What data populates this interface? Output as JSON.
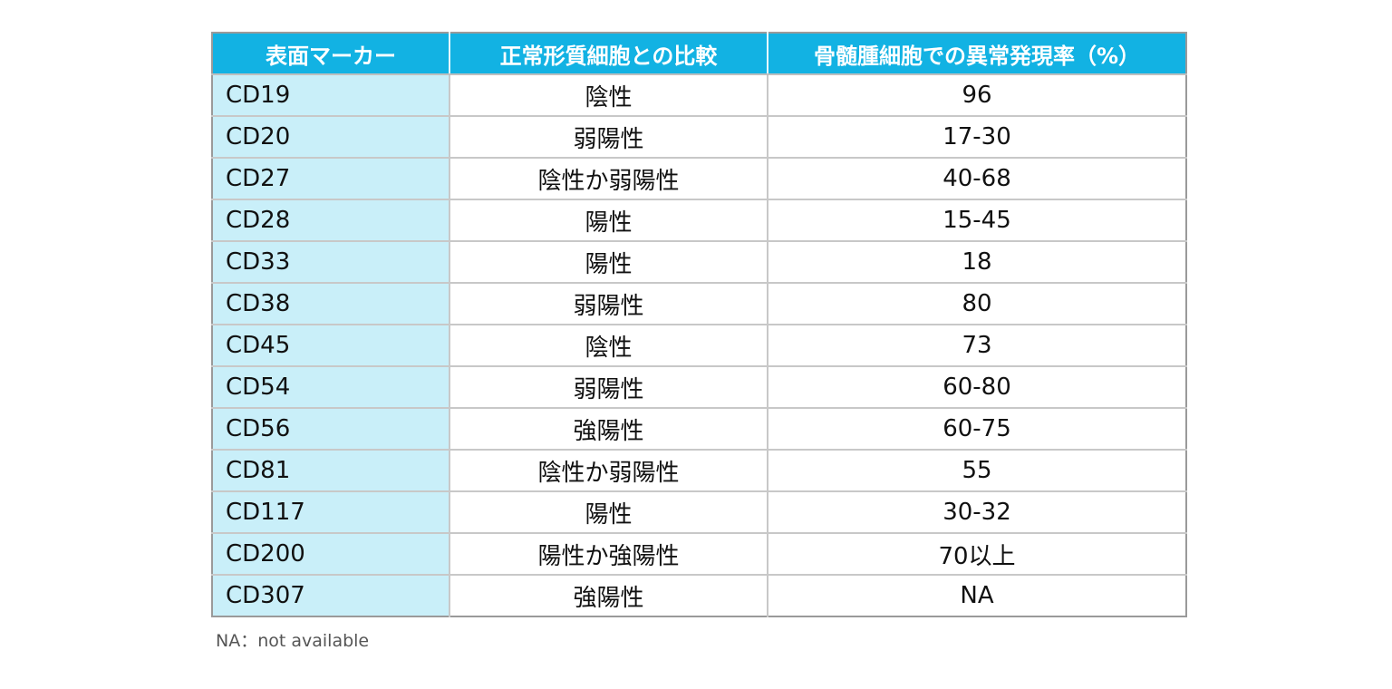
{
  "table": {
    "headers": [
      "表面マーカー",
      "正常形質細胞との比較",
      "骨髄腫細胞での異常発現率（%）"
    ],
    "rows": [
      {
        "marker": "CD19",
        "comparison": "陰性",
        "rate": "96"
      },
      {
        "marker": "CD20",
        "comparison": "弱陽性",
        "rate": "17-30"
      },
      {
        "marker": "CD27",
        "comparison": "陰性か弱陽性",
        "rate": "40-68"
      },
      {
        "marker": "CD28",
        "comparison": "陽性",
        "rate": "15-45"
      },
      {
        "marker": "CD33",
        "comparison": "陽性",
        "rate": "18"
      },
      {
        "marker": "CD38",
        "comparison": "弱陽性",
        "rate": "80"
      },
      {
        "marker": "CD45",
        "comparison": "陰性",
        "rate": "73"
      },
      {
        "marker": "CD54",
        "comparison": "弱陽性",
        "rate": "60-80"
      },
      {
        "marker": "CD56",
        "comparison": "強陽性",
        "rate": "60-75"
      },
      {
        "marker": "CD81",
        "comparison": "陰性か弱陽性",
        "rate": "55"
      },
      {
        "marker": "CD117",
        "comparison": "陽性",
        "rate": "30-32"
      },
      {
        "marker": "CD200",
        "comparison": "陽性か強陽性",
        "rate": "70以上"
      },
      {
        "marker": "CD307",
        "comparison": "強陽性",
        "rate": "NA"
      }
    ]
  },
  "footnote": "NA：not available",
  "colors": {
    "header_bg": "#12b2e3",
    "marker_col_bg": "#c9eff9"
  }
}
